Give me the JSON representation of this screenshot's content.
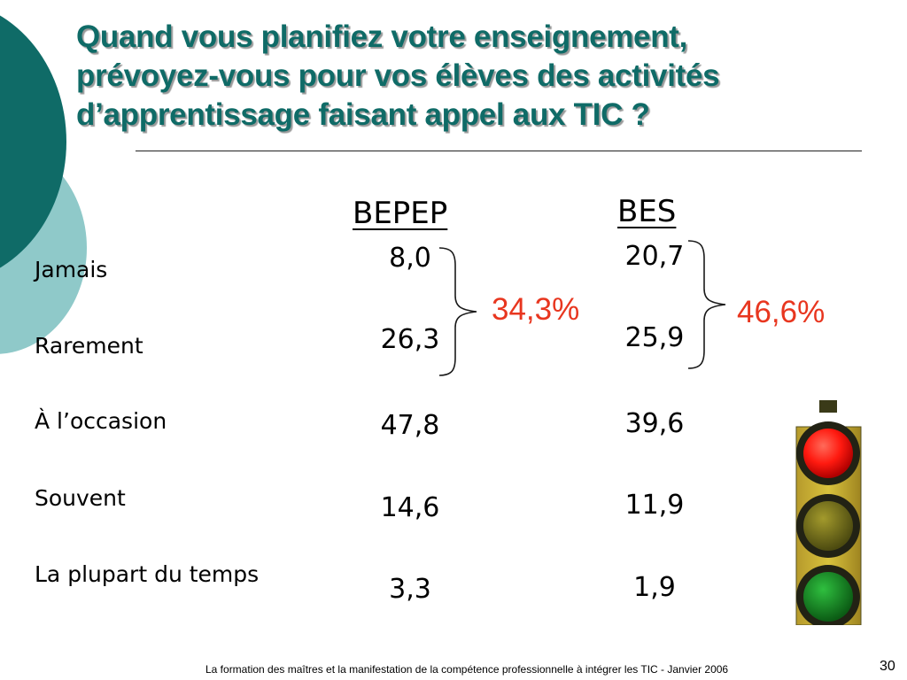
{
  "title": {
    "line1": "Quand vous planifiez votre enseignement,",
    "line2": "prévoyez-vous pour vos élèves des activités",
    "line3": "d’apprentissage faisant appel aux TIC ?"
  },
  "rows": [
    "Jamais",
    "Rarement",
    "À l’occasion",
    "Souvent",
    "La plupart du temps"
  ],
  "columns": [
    {
      "header": "BEPEP",
      "values": [
        "8,0",
        "26,3",
        "47,8",
        "14,6",
        "3,3"
      ],
      "combined_first_two": "34,3%"
    },
    {
      "header": "BES",
      "values": [
        "20,7",
        "25,9",
        "39,6",
        "11,9",
        "1,9"
      ],
      "combined_first_two": "46,6%"
    }
  ],
  "colors": {
    "title": "#0f6b67",
    "accent_percent": "#e8361f",
    "circle_dark": "#0f6b67",
    "circle_light": "#8fc9c9"
  },
  "decoration": {
    "image": "traffic-light-icon",
    "lit_light": "red"
  },
  "footer": {
    "text": "La formation des maîtres et la manifestation de la compétence professionnelle à intégrer les TIC - Janvier 2006",
    "page_number": "30"
  }
}
